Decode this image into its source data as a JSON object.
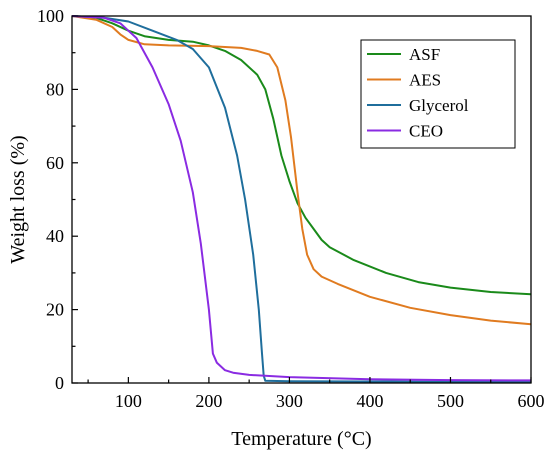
{
  "chart_data": {
    "type": "line",
    "title": "",
    "xlabel": "Temperature (°C)",
    "ylabel": "Weight loss (%)",
    "xlim": [
      30,
      600
    ],
    "ylim": [
      0,
      100
    ],
    "xticks": [
      100,
      200,
      300,
      400,
      500,
      600
    ],
    "yticks": [
      0,
      20,
      40,
      60,
      80,
      100
    ],
    "grid": false,
    "legend_position": "top-right",
    "series": [
      {
        "name": "ASF",
        "color": "#1a8a1a",
        "points": [
          [
            30,
            100
          ],
          [
            60,
            99.5
          ],
          [
            80,
            98
          ],
          [
            100,
            96
          ],
          [
            120,
            94.5
          ],
          [
            150,
            93.5
          ],
          [
            180,
            93
          ],
          [
            200,
            92
          ],
          [
            220,
            90.5
          ],
          [
            240,
            88
          ],
          [
            260,
            84
          ],
          [
            270,
            80
          ],
          [
            280,
            72
          ],
          [
            290,
            62
          ],
          [
            300,
            55
          ],
          [
            310,
            49
          ],
          [
            320,
            45
          ],
          [
            330,
            42
          ],
          [
            340,
            39
          ],
          [
            350,
            37
          ],
          [
            380,
            33.5
          ],
          [
            420,
            30
          ],
          [
            460,
            27.5
          ],
          [
            500,
            26
          ],
          [
            550,
            24.8
          ],
          [
            600,
            24.2
          ]
        ]
      },
      {
        "name": "AES",
        "color": "#e07b20",
        "points": [
          [
            30,
            100
          ],
          [
            60,
            99
          ],
          [
            80,
            97
          ],
          [
            90,
            95
          ],
          [
            100,
            93.5
          ],
          [
            120,
            92.3
          ],
          [
            150,
            92
          ],
          [
            200,
            91.8
          ],
          [
            240,
            91.3
          ],
          [
            260,
            90.5
          ],
          [
            275,
            89.5
          ],
          [
            285,
            86
          ],
          [
            295,
            77
          ],
          [
            302,
            67
          ],
          [
            310,
            52
          ],
          [
            316,
            42
          ],
          [
            322,
            35
          ],
          [
            330,
            31
          ],
          [
            340,
            29
          ],
          [
            360,
            27
          ],
          [
            400,
            23.5
          ],
          [
            450,
            20.5
          ],
          [
            500,
            18.5
          ],
          [
            550,
            17
          ],
          [
            600,
            16
          ]
        ]
      },
      {
        "name": "Glycerol",
        "color": "#1f6e9c",
        "points": [
          [
            30,
            100
          ],
          [
            70,
            99.5
          ],
          [
            100,
            98.5
          ],
          [
            130,
            96
          ],
          [
            160,
            93.5
          ],
          [
            180,
            91
          ],
          [
            200,
            86
          ],
          [
            220,
            75
          ],
          [
            235,
            62
          ],
          [
            245,
            50
          ],
          [
            255,
            35
          ],
          [
            262,
            20
          ],
          [
            266,
            8
          ],
          [
            268,
            2
          ],
          [
            270,
            0.6
          ],
          [
            300,
            0.5
          ],
          [
            400,
            0.4
          ],
          [
            500,
            0.3
          ],
          [
            600,
            0.3
          ]
        ]
      },
      {
        "name": "CEO",
        "color": "#8a2be2",
        "points": [
          [
            30,
            100
          ],
          [
            70,
            99.5
          ],
          [
            90,
            98
          ],
          [
            110,
            94
          ],
          [
            130,
            86
          ],
          [
            150,
            76
          ],
          [
            165,
            66
          ],
          [
            180,
            52
          ],
          [
            190,
            38
          ],
          [
            200,
            20
          ],
          [
            205,
            8
          ],
          [
            210,
            5.5
          ],
          [
            220,
            3.5
          ],
          [
            230,
            2.8
          ],
          [
            250,
            2.2
          ],
          [
            300,
            1.6
          ],
          [
            400,
            1.0
          ],
          [
            500,
            0.8
          ],
          [
            600,
            0.7
          ]
        ]
      }
    ]
  }
}
